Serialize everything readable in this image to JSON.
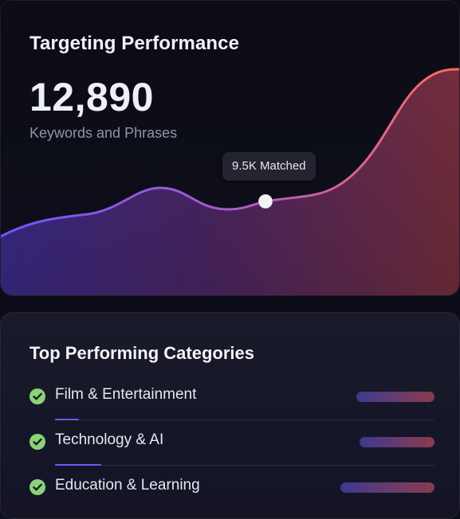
{
  "header": {
    "title": "Targeting Performance",
    "value": "12,890",
    "subtitle": "Keywords and Phrases"
  },
  "chart": {
    "tooltip": "9.5K Matched",
    "colors": {
      "line_start": "#7a56ff",
      "line_end": "#ff6b5a",
      "point": "#f2f2f7"
    }
  },
  "categories": {
    "title": "Top Performing Categories",
    "items": [
      {
        "label": "Film & Entertainment",
        "icon": "check-circle-icon"
      },
      {
        "label": "Technology & AI",
        "icon": "check-circle-icon"
      },
      {
        "label": "Education & Learning",
        "icon": "check-circle-icon"
      }
    ]
  },
  "colors": {
    "check": "#8bd27a",
    "accent": "#6a5cff"
  }
}
